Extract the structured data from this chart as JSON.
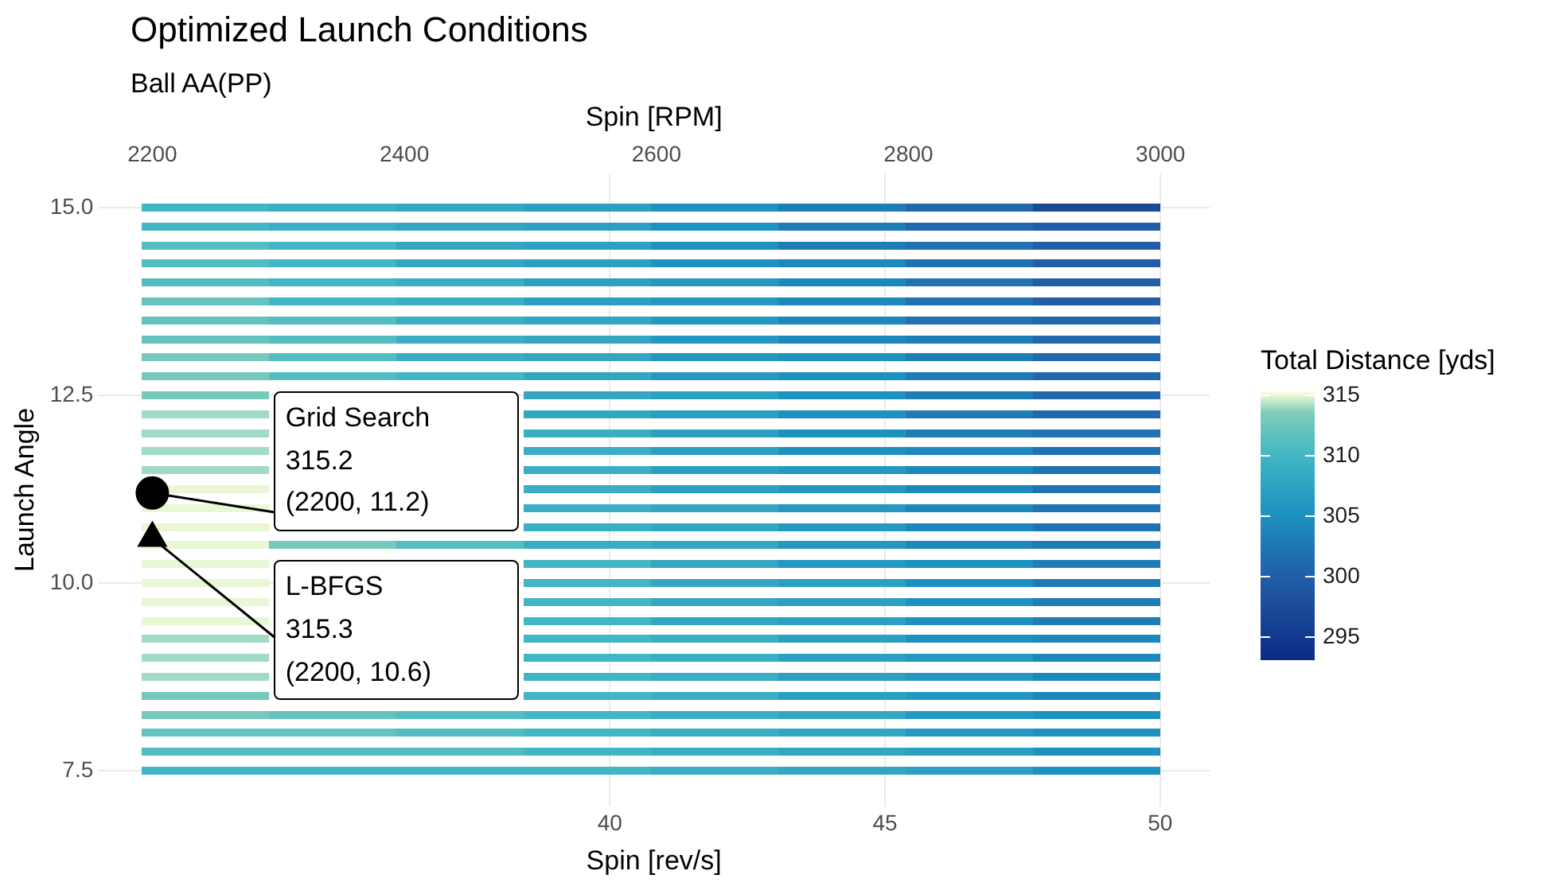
{
  "chart_data": {
    "type": "heatmap",
    "title": "Optimized Launch Conditions",
    "subtitle": "Ball AA(PP)",
    "xlabel": "Spin [rev/s]",
    "ylabel": "Launch Angle",
    "x2label": "Spin [RPM]",
    "clabel": "Total Distance [yds]",
    "xlim": [
      30.7,
      50.9
    ],
    "xticks": [
      40,
      45,
      50
    ],
    "x2lim": [
      2157,
      3039
    ],
    "x2ticks": [
      2200,
      2400,
      2600,
      2800,
      3000
    ],
    "ylim": [
      7.03,
      15.45
    ],
    "yticks": [
      {
        "value": 7.5,
        "label": "7.5"
      },
      {
        "value": 10,
        "label": "10.0"
      },
      {
        "value": 12.5,
        "label": "12.5"
      },
      {
        "value": 15,
        "label": "15.0"
      }
    ],
    "clim": [
      293,
      315.3
    ],
    "cticks": [
      295,
      300,
      305,
      310,
      315
    ],
    "grid": true,
    "legend": false,
    "x": [
      32.66,
      34.97,
      37.28,
      39.59,
      41.91,
      44.22,
      46.53,
      48.84
    ],
    "y": [
      15.0,
      14.75,
      14.5,
      14.25,
      14.0,
      13.75,
      13.5,
      13.25,
      13.0,
      12.75,
      12.5,
      12.25,
      12.0,
      11.75,
      11.5,
      11.25,
      11.0,
      10.75,
      10.5,
      10.25,
      10.0,
      9.75,
      9.5,
      9.25,
      9.0,
      8.75,
      8.5,
      8.25,
      8.0,
      7.75,
      7.5
    ],
    "cells": [
      [
        310,
        309,
        308,
        307,
        305,
        303,
        301,
        297
      ],
      [
        310,
        309,
        308,
        307,
        305,
        303,
        301,
        300
      ],
      [
        311,
        310,
        308,
        307,
        305,
        303,
        302,
        300
      ],
      [
        311,
        310,
        308,
        307,
        305,
        304,
        302,
        300
      ],
      [
        311,
        310,
        309,
        307,
        306,
        304,
        302,
        300
      ],
      [
        312,
        310,
        309,
        307,
        306,
        304,
        302,
        300
      ],
      [
        312,
        311,
        309,
        308,
        306,
        304,
        302,
        301
      ],
      [
        312,
        311,
        309,
        308,
        306,
        304,
        303,
        301
      ],
      [
        313,
        311,
        309,
        308,
        306,
        305,
        303,
        301
      ],
      [
        313,
        311,
        310,
        308,
        306,
        305,
        303,
        301
      ],
      [
        313,
        null,
        null,
        308,
        307,
        305,
        303,
        301
      ],
      [
        314,
        null,
        null,
        308,
        307,
        305,
        303,
        301
      ],
      [
        314,
        null,
        null,
        309,
        307,
        305,
        303,
        302
      ],
      [
        314,
        null,
        null,
        309,
        307,
        305,
        304,
        302
      ],
      [
        314,
        null,
        null,
        309,
        307,
        306,
        304,
        302
      ],
      [
        315,
        null,
        null,
        309,
        307,
        306,
        304,
        302
      ],
      [
        315,
        null,
        null,
        309,
        308,
        306,
        304,
        302
      ],
      [
        315,
        null,
        null,
        309,
        308,
        306,
        304,
        302
      ],
      [
        315,
        313,
        311,
        309,
        308,
        306,
        304,
        303
      ],
      [
        315,
        null,
        null,
        310,
        308,
        306,
        305,
        303
      ],
      [
        315,
        null,
        null,
        310,
        308,
        307,
        305,
        303
      ],
      [
        315,
        null,
        null,
        310,
        308,
        307,
        305,
        303
      ],
      [
        315,
        null,
        null,
        310,
        308,
        307,
        305,
        303
      ],
      [
        314,
        null,
        null,
        310,
        309,
        307,
        305,
        304
      ],
      [
        314,
        null,
        null,
        310,
        309,
        307,
        306,
        304
      ],
      [
        314,
        null,
        null,
        310,
        309,
        307,
        306,
        304
      ],
      [
        313,
        null,
        null,
        310,
        309,
        307,
        306,
        304
      ],
      [
        313,
        312,
        311,
        310,
        309,
        308,
        306,
        305
      ],
      [
        312,
        312,
        311,
        310,
        309,
        308,
        306,
        305
      ],
      [
        311,
        311,
        311,
        310,
        309,
        308,
        307,
        305
      ],
      [
        310,
        310,
        310,
        310,
        309,
        308,
        307,
        305
      ]
    ],
    "series": [
      {
        "name": "Grid Search",
        "type": "scatter",
        "axis": "x2",
        "marker": "circle",
        "color": "#000000",
        "x": [
          2200
        ],
        "values": [
          11.2
        ]
      },
      {
        "name": "L-BFGS",
        "type": "scatter",
        "axis": "x2",
        "marker": "triangle",
        "color": "#000000",
        "x": [
          2200
        ],
        "values": [
          10.6
        ]
      }
    ],
    "annotations": [
      {
        "text": "315.2\n(2200, 11.2)",
        "x": 31.68,
        "y": 11.2
      },
      {
        "text": "315.3\n(2200, 10.6)",
        "x": 31.68,
        "y": 10.6
      }
    ]
  }
}
